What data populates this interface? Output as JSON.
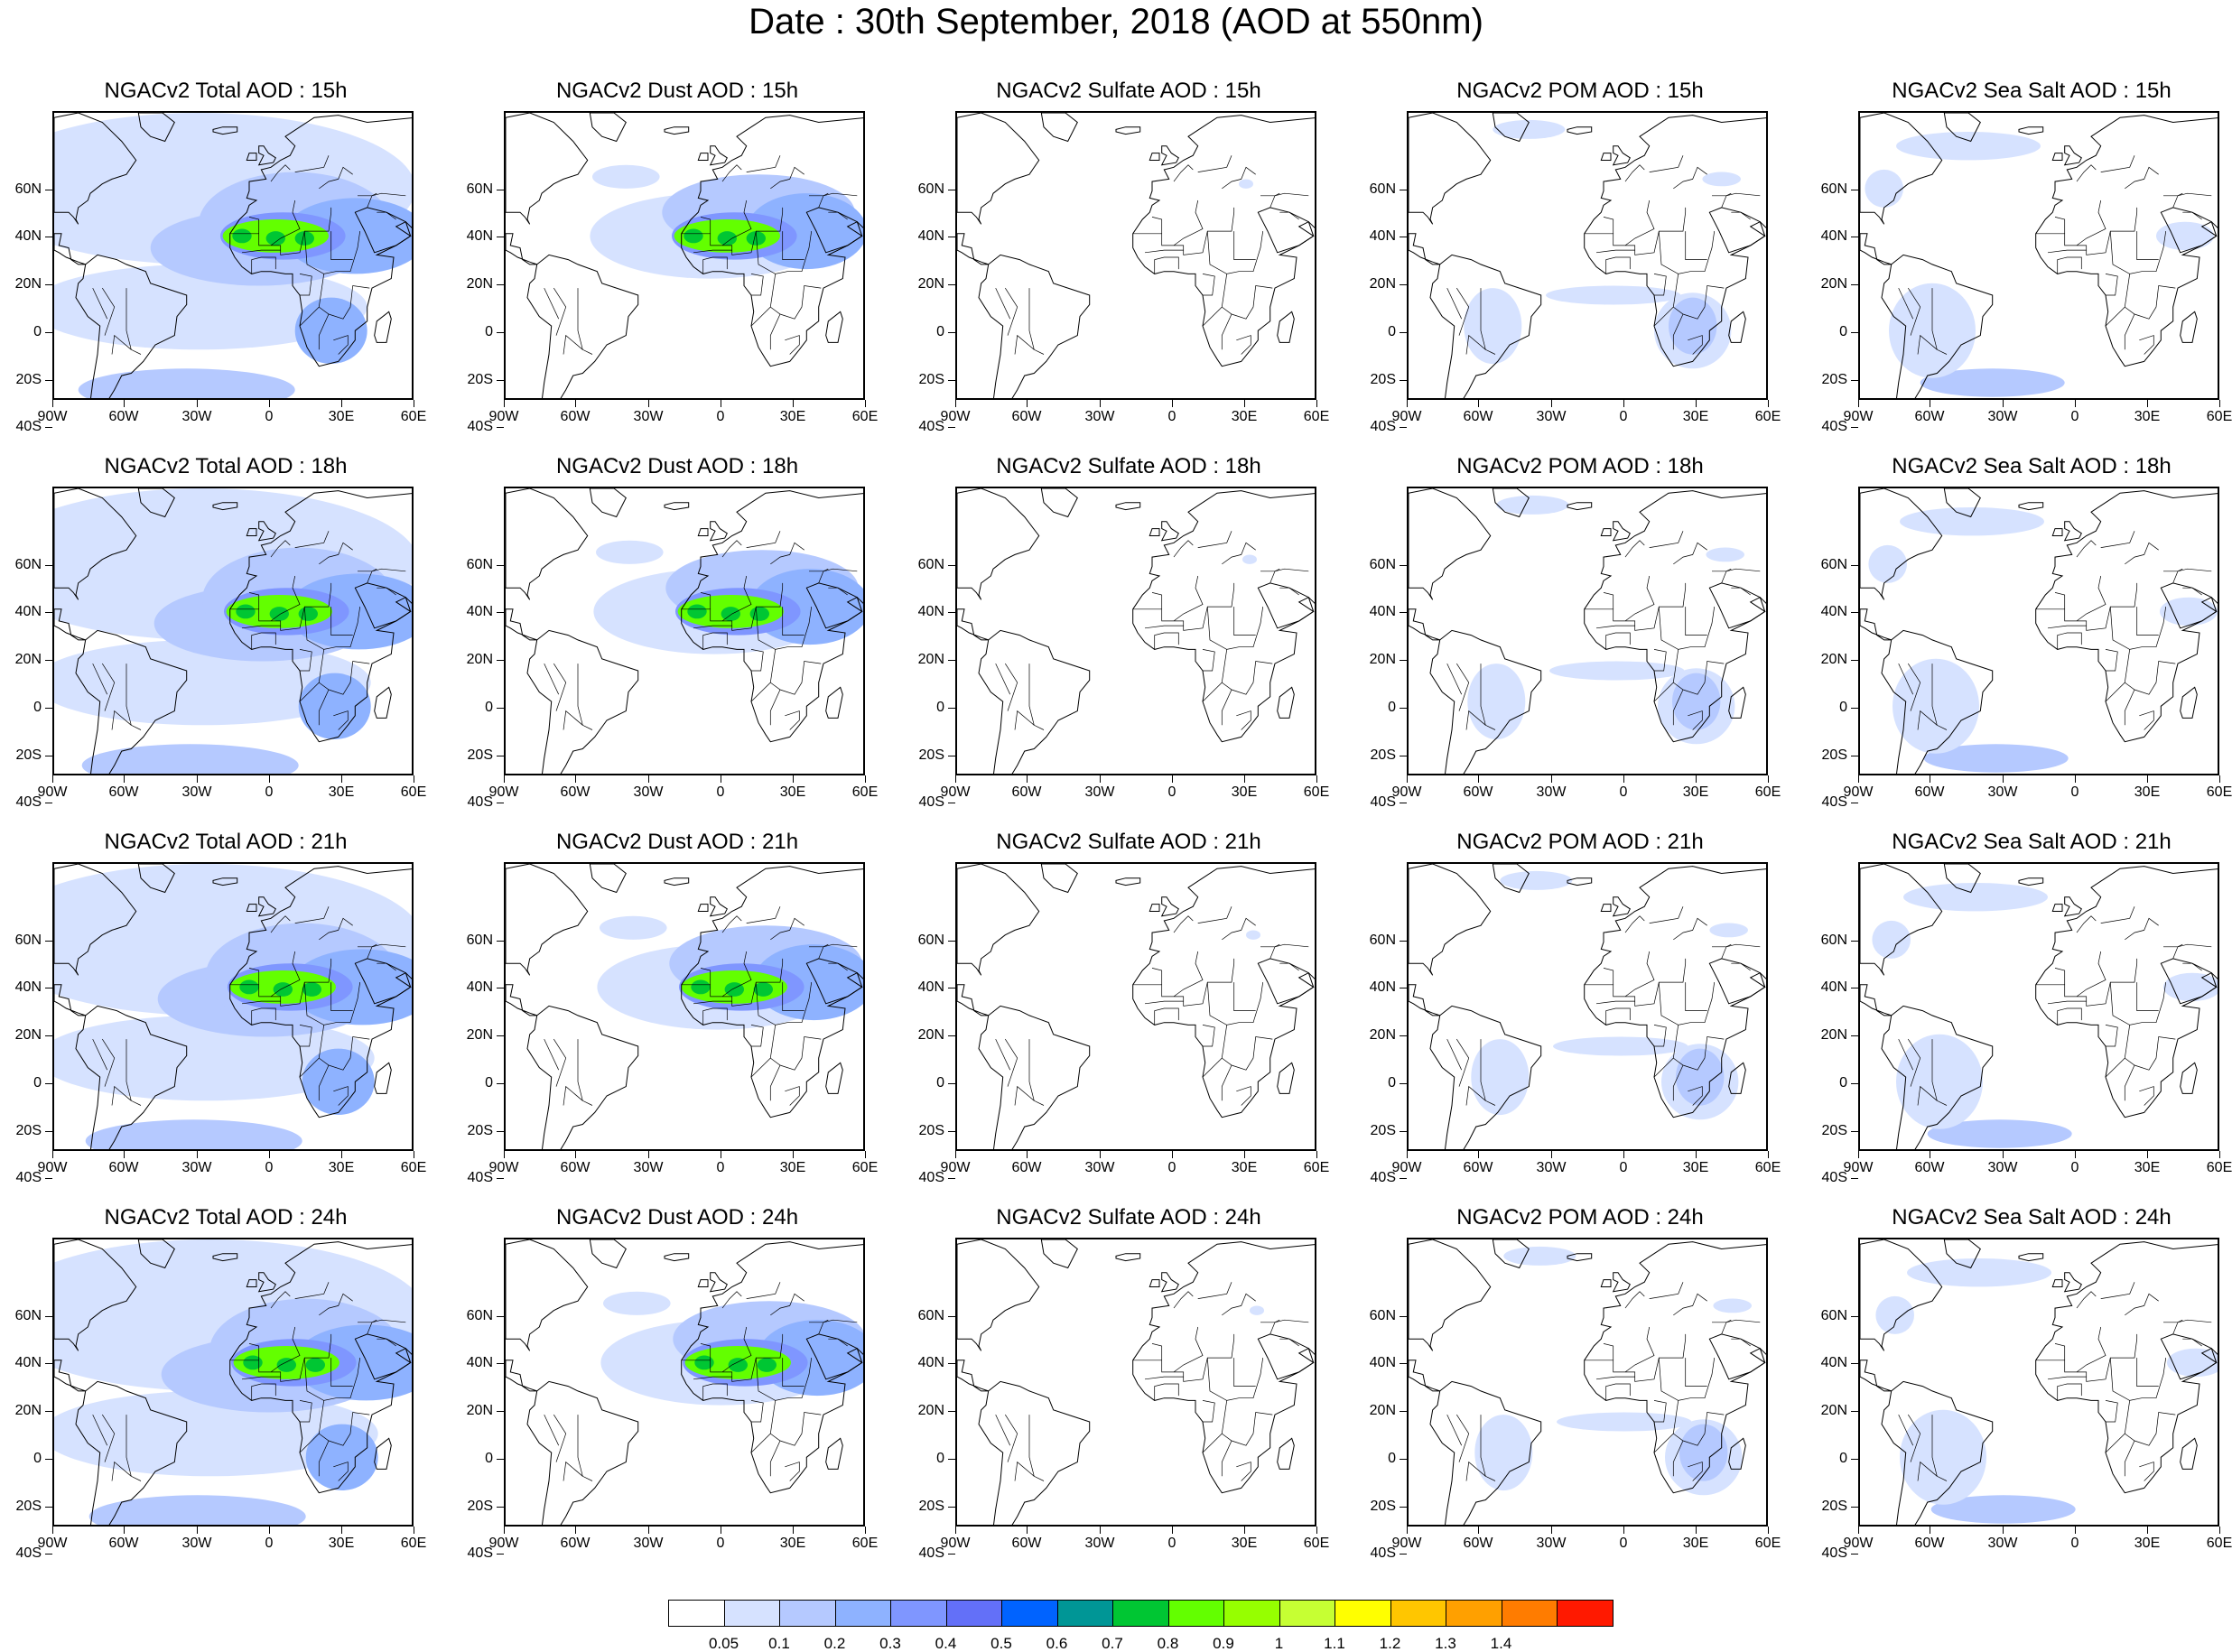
{
  "title": "Date : 30th September, 2018 (AOD at 550nm)",
  "lat_labels": [
    "60N",
    "40N",
    "20N",
    "0",
    "20S",
    "40S"
  ],
  "lon_labels": [
    "90W",
    "60W",
    "30W",
    "0",
    "30E",
    "60E"
  ],
  "rows": [
    {
      "hour": "15h",
      "panels": [
        {
          "title": "NGACv2 Total AOD : 15h",
          "species": "total"
        },
        {
          "title": "NGACv2 Dust AOD : 15h",
          "species": "dust"
        },
        {
          "title": "NGACv2 Sulfate AOD : 15h",
          "species": "sulfate"
        },
        {
          "title": "NGACv2 POM AOD : 15h",
          "species": "pom"
        },
        {
          "title": "NGACv2 Sea Salt AOD : 15h",
          "species": "seasalt"
        }
      ]
    },
    {
      "hour": "18h",
      "panels": [
        {
          "title": "NGACv2 Total AOD : 18h",
          "species": "total"
        },
        {
          "title": "NGACv2 Dust AOD : 18h",
          "species": "dust"
        },
        {
          "title": "NGACv2 Sulfate AOD : 18h",
          "species": "sulfate"
        },
        {
          "title": "NGACv2 POM AOD : 18h",
          "species": "pom"
        },
        {
          "title": "NGACv2 Sea Salt AOD : 18h",
          "species": "seasalt"
        }
      ]
    },
    {
      "hour": "21h",
      "panels": [
        {
          "title": "NGACv2 Total AOD : 21h",
          "species": "total"
        },
        {
          "title": "NGACv2 Dust AOD : 21h",
          "species": "dust"
        },
        {
          "title": "NGACv2 Sulfate AOD : 21h",
          "species": "sulfate"
        },
        {
          "title": "NGACv2 POM AOD : 21h",
          "species": "pom"
        },
        {
          "title": "NGACv2 Sea Salt AOD : 21h",
          "species": "seasalt"
        }
      ]
    },
    {
      "hour": "24h",
      "panels": [
        {
          "title": "NGACv2 Total AOD : 24h",
          "species": "total"
        },
        {
          "title": "NGACv2 Dust AOD : 24h",
          "species": "dust"
        },
        {
          "title": "NGACv2 Sulfate AOD : 24h",
          "species": "sulfate"
        },
        {
          "title": "NGACv2 POM AOD : 24h",
          "species": "pom"
        },
        {
          "title": "NGACv2 Sea Salt  AOD : 24h",
          "species": "seasalt"
        }
      ]
    }
  ],
  "colorbar": {
    "colors": [
      "#ffffff",
      "#d6e2ff",
      "#b5c9ff",
      "#8eb2ff",
      "#7f96ff",
      "#6370f8",
      "#0063ff",
      "#009696",
      "#00c633",
      "#63ff00",
      "#96ff00",
      "#c6ff33",
      "#ffff00",
      "#ffc600",
      "#ffa000",
      "#ff7c00",
      "#ff1900"
    ],
    "labels": [
      "0.05",
      "0.1",
      "0.2",
      "0.3",
      "0.4",
      "0.5",
      "0.6",
      "0.7",
      "0.8",
      "0.9",
      "1",
      "1.1",
      "1.2",
      "1.3",
      "1.4"
    ]
  }
}
